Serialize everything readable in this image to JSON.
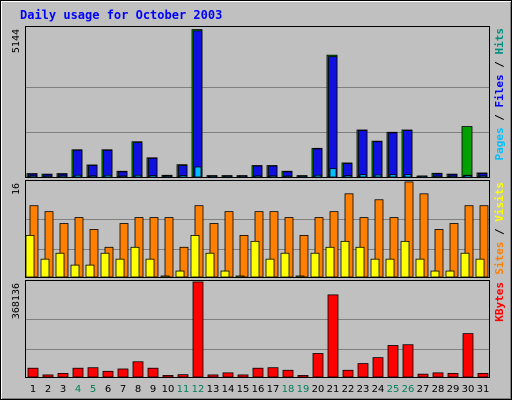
{
  "chart_data": {
    "type": "bar",
    "title": "Daily usage for October 2003",
    "days": [
      "1",
      "2",
      "3",
      "4",
      "5",
      "6",
      "7",
      "8",
      "9",
      "10",
      "11",
      "12",
      "13",
      "14",
      "15",
      "16",
      "17",
      "18",
      "19",
      "20",
      "21",
      "22",
      "23",
      "24",
      "25",
      "26",
      "27",
      "28",
      "29",
      "30",
      "31"
    ],
    "weekend_days": [
      4,
      5,
      11,
      12,
      18,
      19,
      25,
      26
    ],
    "panels": [
      {
        "id": "hits",
        "ymax_label": "5144",
        "ymax": 5144,
        "right_labels": [
          {
            "text": "Pages",
            "color": "#00c0ff"
          },
          {
            "text": "Files",
            "color": "#0000ff"
          },
          {
            "text": "Hits",
            "color": "#009080"
          }
        ],
        "series": [
          {
            "name": "Hits",
            "color": "#00a000",
            "values": [
              120,
              100,
              120,
              950,
              420,
              950,
              200,
              1230,
              670,
              60,
              430,
              5144,
              50,
              50,
              50,
              400,
              400,
              200,
              50,
              1000,
              4250,
              490,
              1640,
              1250,
              1560,
              1640,
              30,
              130,
              100,
              1760,
              140
            ]
          },
          {
            "name": "Files",
            "color": "#1010e0",
            "values": [
              100,
              90,
              100,
              930,
              400,
              930,
              180,
              1200,
              650,
              40,
              400,
              5100,
              40,
              40,
              40,
              380,
              380,
              180,
              40,
              980,
              4200,
              470,
              1620,
              1230,
              1540,
              1620,
              20,
              110,
              90,
              60,
              120
            ]
          },
          {
            "name": "Pages",
            "color": "#00c0ff",
            "values": [
              40,
              30,
              40,
              60,
              40,
              60,
              30,
              60,
              50,
              20,
              50,
              350,
              20,
              20,
              20,
              40,
              40,
              30,
              20,
              60,
              290,
              50,
              80,
              70,
              80,
              80,
              10,
              30,
              30,
              50,
              40
            ]
          }
        ]
      },
      {
        "id": "visits",
        "ymax_label": "16",
        "ymax": 16,
        "right_labels": [
          {
            "text": "Sites",
            "color": "#ff8000"
          },
          {
            "text": "Visits",
            "color": "#ffff00"
          }
        ],
        "series": [
          {
            "name": "Visits",
            "color": "#ff8000",
            "values": [
              12,
              11,
              9,
              10,
              8,
              5,
              9,
              10,
              10,
              10,
              5,
              12,
              9,
              11,
              7,
              11,
              11,
              10,
              7,
              10,
              11,
              14,
              10,
              13,
              10,
              16,
              14,
              8,
              9,
              12,
              12
            ]
          },
          {
            "name": "Sites",
            "color": "#ffff00",
            "values": [
              7,
              3,
              4,
              2,
              2,
              4,
              3,
              5,
              3,
              0,
              1,
              7,
              4,
              1,
              0,
              6,
              3,
              4,
              0,
              4,
              5,
              6,
              5,
              3,
              3,
              6,
              3,
              1,
              1,
              4,
              3
            ]
          }
        ]
      },
      {
        "id": "kbytes",
        "ymax_label": "368136",
        "ymax": 368136,
        "right_labels": [
          {
            "text": "KBytes",
            "color": "#ff0000"
          }
        ],
        "series": [
          {
            "name": "KBytes",
            "color": "#ff0000",
            "values": [
              34000,
              8000,
              14000,
              34000,
              36000,
              22000,
              31000,
              59000,
              34000,
              6000,
              9000,
              368136,
              8000,
              16000,
              8000,
              34000,
              36000,
              26000,
              6000,
              91000,
              318000,
              26000,
              52000,
              75000,
              122000,
              125000,
              11000,
              16000,
              14000,
              168000,
              14000
            ]
          }
        ]
      }
    ]
  }
}
